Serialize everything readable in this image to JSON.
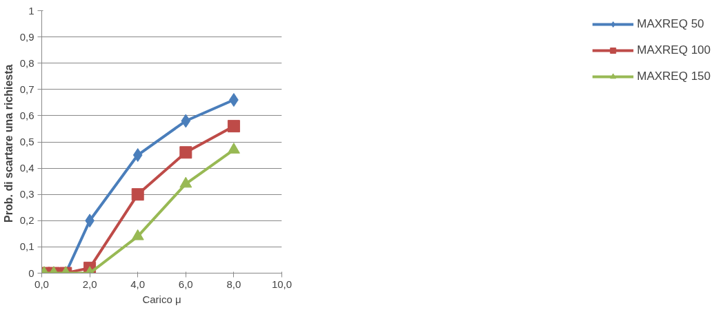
{
  "chart_data": {
    "type": "line",
    "xlabel": "Carico μ",
    "ylabel": "Prob.  di scartare una richiesta",
    "xlim": [
      0,
      10
    ],
    "ylim": [
      0,
      1
    ],
    "xticks": [
      {
        "value": 0,
        "label": "0,0"
      },
      {
        "value": 2,
        "label": "2,0"
      },
      {
        "value": 4,
        "label": "4,0"
      },
      {
        "value": 6,
        "label": "6,0"
      },
      {
        "value": 8,
        "label": "8,0"
      },
      {
        "value": 10,
        "label": "10,0"
      }
    ],
    "yticks": [
      0,
      {
        "value": 0.1,
        "label": "0,1"
      },
      {
        "value": 0.2,
        "label": "0,2"
      },
      {
        "value": 0.3,
        "label": "0,3"
      },
      {
        "value": 0.4,
        "label": "0,4"
      },
      {
        "value": 0.5,
        "label": "0,5"
      },
      {
        "value": 0.6,
        "label": "0,6"
      },
      {
        "value": 0.7,
        "label": "0,7"
      },
      {
        "value": 0.8,
        "label": "0,8"
      },
      {
        "value": 0.9,
        "label": "0,9"
      },
      1
    ],
    "x": [
      0.1,
      0.5,
      1,
      2,
      4,
      6,
      8
    ],
    "series": [
      {
        "name": "MAXREQ 50",
        "color": "#4a7ebb",
        "marker": "diamond",
        "values": [
          0,
          0,
          0,
          0.2,
          0.45,
          0.58,
          0.66
        ]
      },
      {
        "name": "MAXREQ 100",
        "color": "#be4b48",
        "marker": "square",
        "values": [
          0,
          0,
          0,
          0.02,
          0.3,
          0.46,
          0.56
        ]
      },
      {
        "name": "MAXREQ 150",
        "color": "#98b954",
        "marker": "triangle",
        "values": [
          0,
          0,
          0,
          0,
          0.14,
          0.34,
          0.47
        ]
      }
    ],
    "grid": "y",
    "legend": "right"
  }
}
